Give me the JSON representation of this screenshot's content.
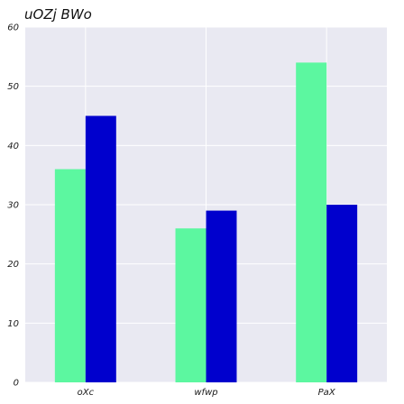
{
  "chart_data": {
    "type": "bar",
    "title": "uOZj BWo",
    "xlabel": "",
    "ylabel": "",
    "categories": [
      "oXc",
      "wfwp",
      "PaX"
    ],
    "series": [
      {
        "values": [
          36,
          26,
          54
        ],
        "color": "#5cf7a0"
      },
      {
        "values": [
          45,
          29,
          30
        ],
        "color": "#0000cd"
      }
    ],
    "ylim": [
      0,
      60
    ],
    "yticks": [
      0,
      10,
      20,
      30,
      40,
      50,
      60
    ],
    "grid": true,
    "background": "#e9e9f2",
    "grid_color": "#ffffff"
  }
}
